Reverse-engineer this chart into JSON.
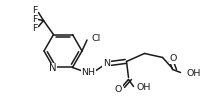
{
  "bg_color": "#ffffff",
  "line_color": "#1a1a1a",
  "line_width": 1.1,
  "font_size": 6.8,
  "fig_width": 2.1,
  "fig_height": 1.03,
  "dpi": 100,
  "xlim": [
    0,
    210
  ],
  "ylim": [
    0,
    103
  ]
}
